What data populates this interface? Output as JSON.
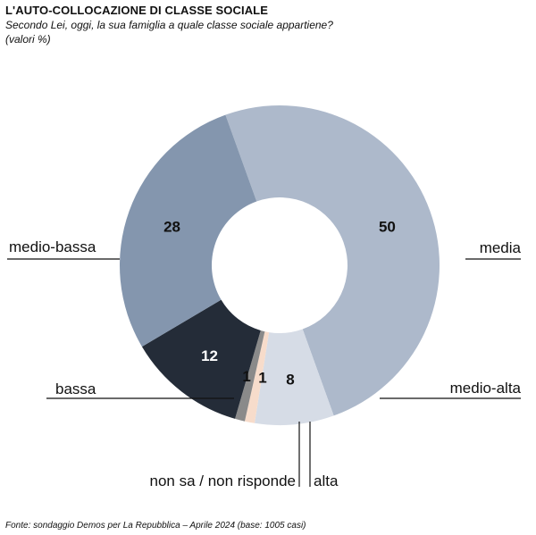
{
  "header": {
    "title": "L'AUTO-COLLOCAZIONE DI CLASSE SOCIALE",
    "subtitle": "Secondo Lei, oggi, la sua famiglia a quale classe sociale appartiene?",
    "unit": "(valori %)"
  },
  "footer": {
    "source": "Fonte: sondaggio Demos per La Repubblica – Aprile 2024 (base: 1005 casi)"
  },
  "chart_data": {
    "type": "pie",
    "donut": true,
    "slices": [
      {
        "label": "media",
        "value": 50,
        "color": "#adb9cb",
        "value_color": "#111111"
      },
      {
        "label": "medio-alta",
        "value": 8,
        "color": "#d6dce6",
        "value_color": "#111111"
      },
      {
        "label": "alta",
        "value": 1,
        "color": "#f7dccb",
        "value_color": "#111111"
      },
      {
        "label": "non sa / non risponde",
        "value": 1,
        "color": "#8a8a8a",
        "value_color": "#111111"
      },
      {
        "label": "bassa",
        "value": 12,
        "color": "#242c38",
        "value_color": "#ffffff"
      },
      {
        "label": "medio-bassa",
        "value": 28,
        "color": "#8496ae",
        "value_color": "#111111"
      }
    ]
  }
}
